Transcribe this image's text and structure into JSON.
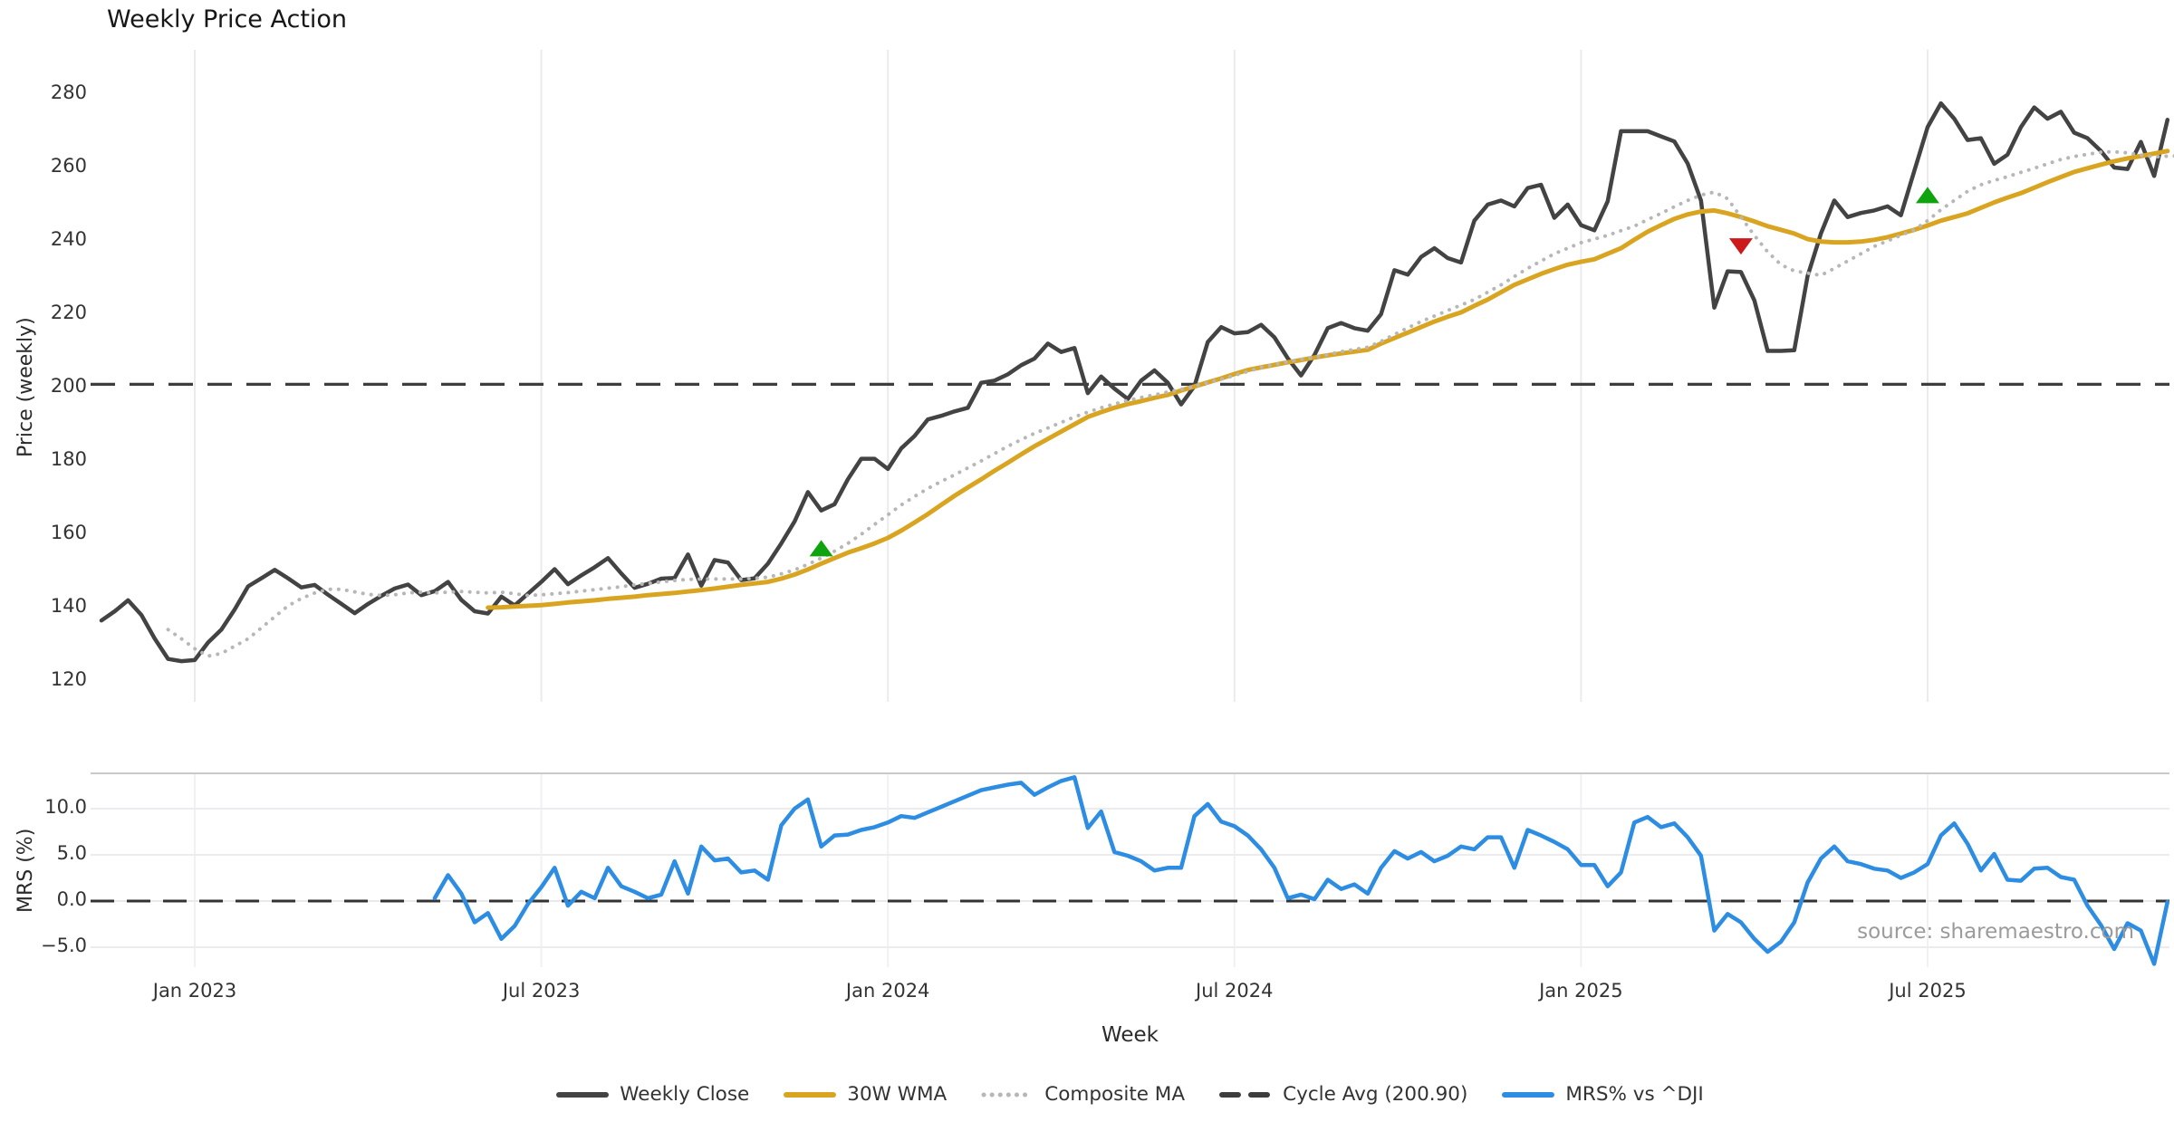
{
  "title": "Weekly Price Action",
  "xlabel": "Week",
  "source_note": "source: sharemaestro.com",
  "price_axis": {
    "label": "Price (weekly)",
    "tick_values": [
      280,
      260,
      240,
      220,
      200,
      180,
      160,
      140,
      120
    ],
    "tick_labels": [
      "280",
      "260",
      "240",
      "220",
      "200",
      "180",
      "160",
      "140",
      "120"
    ]
  },
  "mrs_axis": {
    "label": "MRS (%)",
    "tick_values": [
      10,
      5,
      0,
      -5
    ],
    "tick_labels": [
      "10.0",
      "5.0",
      "0.0",
      "−5.0"
    ]
  },
  "legend": [
    {
      "label": "Weekly Close",
      "color": "#434343",
      "style": "solid"
    },
    {
      "label": "30W WMA",
      "color": "#d9a521",
      "style": "solid"
    },
    {
      "label": "Composite MA",
      "color": "#b7b7b7",
      "style": "dotted"
    },
    {
      "label": "Cycle Avg (200.90)",
      "color": "#3d3d3d",
      "style": "dashed"
    },
    {
      "label": "MRS% vs ^DJI",
      "color": "#2d8de2",
      "style": "solid"
    }
  ],
  "chart_data": {
    "type": "line",
    "x_unit": "week_index",
    "n_weeks": 156,
    "x_ticks": [
      {
        "label": "Jan 2023",
        "week": 7
      },
      {
        "label": "Jul 2023",
        "week": 33
      },
      {
        "label": "Jan 2024",
        "week": 59
      },
      {
        "label": "Jul 2024",
        "week": 85
      },
      {
        "label": "Jan 2025",
        "week": 111
      },
      {
        "label": "Jul 2025",
        "week": 137
      }
    ],
    "panels": {
      "price": {
        "ylabel": "Price (weekly)",
        "ylim": [
          114,
          292
        ],
        "grid": "vertical"
      },
      "mrs": {
        "ylabel": "MRS (%)",
        "ylim": [
          -7.2,
          13.8
        ],
        "grid": "horizontal+vertical",
        "zero_line": true
      }
    },
    "cycle_avg": 200.9,
    "series": [
      {
        "name": "Weekly Close",
        "panel": "price",
        "color": "#434343",
        "width": 4.5,
        "style": "solid",
        "values": [
          136.5,
          139,
          142,
          138,
          131.5,
          126,
          125.4,
          125.7,
          130.5,
          134,
          139.5,
          145.8,
          148,
          150.3,
          148,
          145.5,
          146.2,
          143.5,
          141,
          138.5,
          141,
          143.2,
          145.2,
          146.3,
          143.4,
          144.5,
          147,
          142.1,
          139,
          138.4,
          143,
          140.6,
          143.8,
          147,
          150.5,
          146.4,
          148.8,
          151,
          153.5,
          149.3,
          145.4,
          146.5,
          147.9,
          148.1,
          154.5,
          146,
          153,
          152.3,
          147.5,
          148,
          152,
          157.5,
          163.5,
          171.5,
          166.5,
          168.2,
          175,
          180.6,
          180.6,
          177.8,
          183.4,
          186.8,
          191.3,
          192.3,
          193.5,
          194.5,
          201.3,
          201.9,
          203.6,
          206.1,
          207.9,
          212,
          209.7,
          210.8,
          198.5,
          203,
          199.7,
          196.9,
          201.9,
          204.7,
          201.3,
          195.4,
          200.4,
          212.4,
          216.5,
          214.8,
          215.1,
          217.1,
          213.7,
          208,
          203.3,
          208.9,
          216.2,
          217.6,
          216.2,
          215.5,
          220,
          232,
          230.8,
          235.6,
          238,
          235.3,
          234.1,
          245.5,
          249.9,
          251,
          249.4,
          254.4,
          255.3,
          246.3,
          249.9,
          244.3,
          242.9,
          250.8,
          269.9,
          269.9,
          269.9,
          268.5,
          267.1,
          261.1,
          251,
          221.8,
          231.7,
          231.5,
          223.8,
          210,
          210,
          210.2,
          230.4,
          242,
          251,
          246.5,
          247.6,
          248.3,
          249.4,
          247,
          259,
          271,
          277.5,
          273.3,
          267.5,
          268,
          261,
          263.5,
          271,
          276.4,
          273.3,
          275.2,
          269.5,
          268,
          264.5,
          260,
          259.6,
          267,
          257.7,
          273
        ]
      },
      {
        "name": "30W WMA",
        "panel": "price",
        "color": "#d9a521",
        "width": 5,
        "style": "solid",
        "values": [
          null,
          null,
          null,
          null,
          null,
          null,
          null,
          null,
          null,
          null,
          null,
          null,
          null,
          null,
          null,
          null,
          null,
          null,
          null,
          null,
          null,
          null,
          null,
          null,
          null,
          null,
          null,
          null,
          null,
          140,
          140.1,
          140.3,
          140.5,
          140.7,
          141,
          141.4,
          141.7,
          142,
          142.4,
          142.7,
          143,
          143.4,
          143.7,
          144,
          144.4,
          144.8,
          145.2,
          145.7,
          146.2,
          146.6,
          147,
          147.9,
          149,
          150.4,
          152,
          153.5,
          155,
          156.2,
          157.5,
          159,
          161,
          163.2,
          165.5,
          168,
          170.5,
          172.8,
          175,
          177.3,
          179.5,
          181.8,
          184,
          186,
          188,
          190,
          192,
          193.3,
          194.5,
          195.5,
          196.3,
          197.2,
          198,
          199.2,
          200.3,
          201.4,
          202.5,
          203.7,
          204.8,
          205.5,
          206.2,
          206.9,
          207.5,
          208.2,
          208.8,
          209.3,
          209.8,
          210.3,
          212,
          213.5,
          215,
          216.5,
          218,
          219.3,
          220.5,
          222.3,
          224,
          226,
          228,
          229.5,
          231,
          232.3,
          233.5,
          234.3,
          235,
          236.5,
          238,
          240.3,
          242.5,
          244.3,
          246,
          247.2,
          248,
          248.3,
          247.5,
          246.5,
          245.3,
          244,
          243,
          242,
          240.5,
          239.8,
          239.6,
          239.6,
          239.8,
          240.3,
          241,
          242,
          243,
          244.2,
          245.5,
          246.5,
          247.5,
          249,
          250.5,
          251.8,
          253,
          254.5,
          256,
          257.4,
          258.8,
          259.8,
          260.8,
          261.7,
          262.5,
          263.1,
          263.8,
          264.5
        ]
      },
      {
        "name": "Composite MA",
        "panel": "price",
        "color": "#b7b7b7",
        "width": 4,
        "style": "dotted",
        "values": [
          null,
          null,
          null,
          null,
          null,
          134,
          131.5,
          128.8,
          126.8,
          127.5,
          129.5,
          131.5,
          134.5,
          137.5,
          140.5,
          142.5,
          144,
          145,
          145,
          144.3,
          143.6,
          143.3,
          143.5,
          144,
          144.2,
          144,
          144.2,
          144.4,
          144.2,
          144,
          144.2,
          143.8,
          143.3,
          143.5,
          143.8,
          144.1,
          144.5,
          144.9,
          145.3,
          145.7,
          146.2,
          146.6,
          147,
          147.4,
          147.7,
          147.8,
          147.8,
          147.8,
          147.8,
          148,
          148.3,
          149.2,
          150.3,
          151.8,
          153.5,
          155.4,
          157.5,
          160,
          162.7,
          165.3,
          168,
          170.3,
          172.5,
          174.4,
          176.2,
          178.1,
          180,
          182,
          184,
          185.8,
          187.5,
          189,
          190.5,
          192,
          193.3,
          194.5,
          195.5,
          196.5,
          197.3,
          198,
          198.8,
          199.5,
          200.4,
          201.3,
          202.3,
          203.3,
          204.4,
          205.5,
          206.3,
          207,
          207.7,
          208.3,
          209,
          209.8,
          210.4,
          211,
          212.6,
          214.5,
          216.3,
          218,
          219.5,
          221,
          222.5,
          224,
          226,
          228,
          230.3,
          232.5,
          234.5,
          236.5,
          238,
          239.5,
          240.5,
          241.5,
          242.8,
          244,
          245.8,
          247.5,
          249.3,
          251,
          252.5,
          253.3,
          251.5,
          246.5,
          241.5,
          237,
          233.5,
          231.8,
          231.2,
          230.6,
          232.5,
          234.5,
          236.5,
          238.5,
          240,
          241.5,
          243,
          245.5,
          248.5,
          251,
          253.5,
          255.3,
          256.5,
          257.5,
          258.7,
          259.8,
          261,
          262.2,
          263,
          263.6,
          264.2,
          264.3,
          264,
          263.4,
          262.9,
          263.1,
          263.2,
          263.3
        ]
      },
      {
        "name": "MRS% vs ^DJI",
        "panel": "mrs",
        "color": "#2d8de2",
        "width": 4.5,
        "style": "solid",
        "values": [
          null,
          null,
          null,
          null,
          null,
          null,
          null,
          null,
          null,
          null,
          null,
          null,
          null,
          null,
          null,
          null,
          null,
          null,
          null,
          null,
          null,
          null,
          null,
          null,
          null,
          0.3,
          2.8,
          0.8,
          -2.3,
          -1.3,
          -4.1,
          -2.7,
          -0.3,
          1.5,
          3.6,
          -0.5,
          1.0,
          0.3,
          3.6,
          1.6,
          1.0,
          0.3,
          0.7,
          4.3,
          0.8,
          5.9,
          4.4,
          4.6,
          3.1,
          3.3,
          2.3,
          8.2,
          10.0,
          11.0,
          5.9,
          7.1,
          7.2,
          7.7,
          8.0,
          8.5,
          9.2,
          9.0,
          9.6,
          10.2,
          10.8,
          11.4,
          12.0,
          12.3,
          12.6,
          12.8,
          11.5,
          12.3,
          13.0,
          13.4,
          7.9,
          9.7,
          5.3,
          4.9,
          4.3,
          3.3,
          3.6,
          3.6,
          9.2,
          10.5,
          8.6,
          8.1,
          7.1,
          5.6,
          3.6,
          0.3,
          0.7,
          0.2,
          2.3,
          1.3,
          1.8,
          0.8,
          3.6,
          5.4,
          4.6,
          5.3,
          4.3,
          4.9,
          5.9,
          5.6,
          6.9,
          6.9,
          3.6,
          7.7,
          7.1,
          6.4,
          5.6,
          3.9,
          3.9,
          1.6,
          3.1,
          8.5,
          9.1,
          8.0,
          8.4,
          6.9,
          4.9,
          -3.2,
          -1.4,
          -2.3,
          -4.1,
          -5.5,
          -4.4,
          -2.3,
          2.0,
          4.6,
          5.9,
          4.3,
          4.0,
          3.5,
          3.3,
          2.5,
          3.1,
          4.0,
          7.1,
          8.4,
          6.2,
          3.3,
          5.1,
          2.3,
          2.2,
          3.5,
          3.6,
          2.6,
          2.3,
          -0.5,
          -2.6,
          -5.2,
          -2.4,
          -3.2,
          -6.8,
          -0.1
        ]
      }
    ],
    "markers": {
      "buy_signals": [
        {
          "week": 54,
          "price": 156.2
        },
        {
          "week": 137,
          "price": 252.5
        }
      ],
      "sell_signals": [
        {
          "week": 123,
          "price": 238.5
        }
      ],
      "buy_color": "#0fa30f",
      "sell_color": "#cc1a1a"
    }
  }
}
